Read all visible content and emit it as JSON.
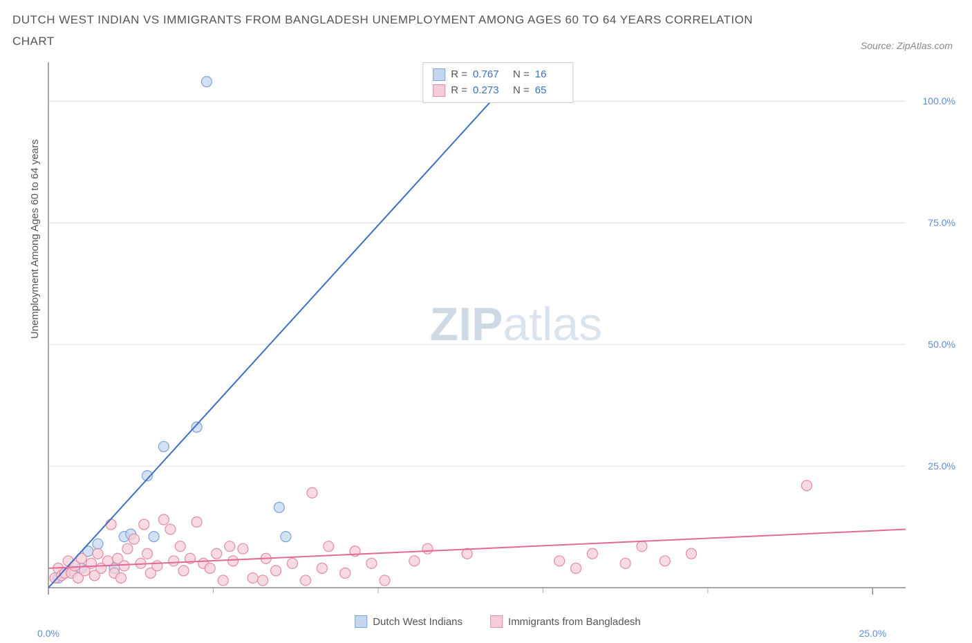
{
  "title": "DUTCH WEST INDIAN VS IMMIGRANTS FROM BANGLADESH UNEMPLOYMENT AMONG AGES 60 TO 64 YEARS CORRELATION CHART",
  "source": "Source: ZipAtlas.com",
  "watermark_main": "ZIP",
  "watermark_sub": "atlas",
  "chart": {
    "type": "scatter",
    "y_axis_label": "Unemployment Among Ages 60 to 64 years",
    "background_color": "#ffffff",
    "grid_color": "#dddddd",
    "axis_color": "#888888",
    "tick_color": "#aaaaaa",
    "y_ticks": [
      {
        "value": 25,
        "label": "25.0%"
      },
      {
        "value": 50,
        "label": "50.0%"
      },
      {
        "value": 75,
        "label": "75.0%"
      },
      {
        "value": 100,
        "label": "100.0%"
      }
    ],
    "x_ticks": [
      {
        "value": 0,
        "label": "0.0%"
      },
      {
        "value": 25,
        "label": "25.0%"
      }
    ],
    "x_minor_ticks": [
      5,
      10,
      15,
      20
    ],
    "xlim": [
      0,
      26
    ],
    "ylim": [
      0,
      108
    ],
    "series": [
      {
        "name": "Dutch West Indians",
        "color_fill": "#c5d6ef",
        "color_stroke": "#7aa3d9",
        "line_color": "#3a6fc4",
        "R": "0.767",
        "N": "16",
        "trend": {
          "x1": 0,
          "y1": 0,
          "x2": 14.5,
          "y2": 108
        },
        "points": [
          [
            0.3,
            2
          ],
          [
            0.5,
            3
          ],
          [
            0.7,
            3.5
          ],
          [
            1.0,
            4
          ],
          [
            1.2,
            7.5
          ],
          [
            1.5,
            9
          ],
          [
            2.0,
            4
          ],
          [
            2.3,
            10.5
          ],
          [
            2.5,
            11
          ],
          [
            3.0,
            23
          ],
          [
            3.5,
            29
          ],
          [
            4.5,
            33
          ],
          [
            4.8,
            104
          ],
          [
            7.0,
            16.5
          ],
          [
            7.2,
            10.5
          ],
          [
            3.2,
            10.5
          ]
        ]
      },
      {
        "name": "Immigrants from Bangladesh",
        "color_fill": "#f6cdd8",
        "color_stroke": "#e48aa3",
        "line_color": "#e06997",
        "R": "0.273",
        "N": "65",
        "trend": {
          "x1": 0,
          "y1": 4,
          "x2": 26,
          "y2": 12
        },
        "points": [
          [
            0.2,
            2
          ],
          [
            0.3,
            4
          ],
          [
            0.4,
            2.5
          ],
          [
            0.5,
            3
          ],
          [
            0.6,
            5.5
          ],
          [
            0.7,
            3
          ],
          [
            0.8,
            4.5
          ],
          [
            0.9,
            2
          ],
          [
            1.0,
            6
          ],
          [
            1.1,
            3.5
          ],
          [
            1.3,
            5
          ],
          [
            1.4,
            2.5
          ],
          [
            1.5,
            7
          ],
          [
            1.6,
            4
          ],
          [
            1.8,
            5.5
          ],
          [
            1.9,
            13
          ],
          [
            2.0,
            3
          ],
          [
            2.1,
            6
          ],
          [
            2.3,
            4.5
          ],
          [
            2.4,
            8
          ],
          [
            2.6,
            10
          ],
          [
            2.8,
            5
          ],
          [
            2.9,
            13
          ],
          [
            3.0,
            7
          ],
          [
            3.1,
            3
          ],
          [
            3.3,
            4.5
          ],
          [
            3.5,
            14
          ],
          [
            3.7,
            12
          ],
          [
            3.8,
            5.5
          ],
          [
            4.0,
            8.5
          ],
          [
            4.1,
            3.5
          ],
          [
            4.3,
            6
          ],
          [
            4.5,
            13.5
          ],
          [
            4.7,
            5
          ],
          [
            4.9,
            4
          ],
          [
            5.1,
            7
          ],
          [
            5.3,
            1.5
          ],
          [
            5.6,
            5.5
          ],
          [
            5.9,
            8
          ],
          [
            6.2,
            2
          ],
          [
            6.5,
            1.5
          ],
          [
            6.6,
            6
          ],
          [
            6.9,
            3.5
          ],
          [
            7.4,
            5
          ],
          [
            7.8,
            1.5
          ],
          [
            8.0,
            19.5
          ],
          [
            8.3,
            4
          ],
          [
            8.5,
            8.5
          ],
          [
            9.0,
            3
          ],
          [
            9.3,
            7.5
          ],
          [
            9.8,
            5
          ],
          [
            10.2,
            1.5
          ],
          [
            11.1,
            5.5
          ],
          [
            11.5,
            8
          ],
          [
            12.7,
            7
          ],
          [
            15.5,
            5.5
          ],
          [
            16.0,
            4
          ],
          [
            16.5,
            7
          ],
          [
            17.5,
            5
          ],
          [
            18.0,
            8.5
          ],
          [
            18.7,
            5.5
          ],
          [
            19.5,
            7
          ],
          [
            23.0,
            21
          ],
          [
            5.5,
            8.5
          ],
          [
            2.2,
            2
          ]
        ]
      }
    ]
  },
  "corr_legend": {
    "r_label": "R =",
    "n_label": "N ="
  },
  "bottom_legend": {
    "items": [
      {
        "label": "Dutch West Indians",
        "fill": "#c5d6ef",
        "stroke": "#7aa3d9"
      },
      {
        "label": "Immigrants from Bangladesh",
        "fill": "#f6cdd8",
        "stroke": "#e48aa3"
      }
    ]
  }
}
